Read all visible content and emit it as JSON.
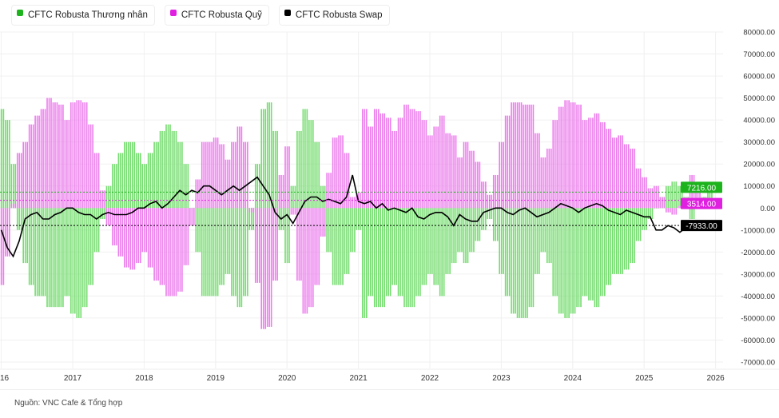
{
  "legend": [
    {
      "label": "CFTC Robusta Thương nhân",
      "color": "#1db31d"
    },
    {
      "label": "CFTC Robusta Quỹ",
      "color": "#e020e0"
    },
    {
      "label": "CFTC Robusta Swap",
      "color": "#000000"
    }
  ],
  "source": "Nguồn: VNC Cafe & Tổng hợp",
  "chart_data": {
    "type": "bar",
    "x_start": "2016-01",
    "x_step": "month",
    "x_ticks": [
      "16",
      "2017",
      "2018",
      "2019",
      "2020",
      "2021",
      "2022",
      "2023",
      "2024",
      "2025",
      "2026"
    ],
    "ylim": [
      -70000,
      80000
    ],
    "y_ticks": [
      80000,
      70000,
      60000,
      50000,
      40000,
      30000,
      20000,
      10000,
      0,
      -10000,
      -20000,
      -30000,
      -40000,
      -50000,
      -60000,
      -70000
    ],
    "y_tick_labels": [
      "80000.00",
      "70000.00",
      "60000.00",
      "50000.00",
      "40000.00",
      "30000.00",
      "20000.00",
      "10000.00",
      "0.00",
      "-10000.00",
      "-20000.00",
      "-30000.00",
      "-40000.00",
      "-50000.00",
      "-60000.00",
      "-70000.00"
    ],
    "grid": true,
    "axis_position": "right",
    "legend_position": "top-left",
    "series": [
      {
        "name": "CFTC Robusta Thương nhân",
        "kind": "bar",
        "color": "#74dc6e",
        "label_color": "#1db31d",
        "last_label": "7216.00",
        "values": [
          45000,
          40000,
          20000,
          -10000,
          -25000,
          -35000,
          -40000,
          -40000,
          -45000,
          -45000,
          -45000,
          -40000,
          -48000,
          -50000,
          -45000,
          -35000,
          -20000,
          -5000,
          10000,
          20000,
          25000,
          30000,
          30000,
          25000,
          20000,
          25000,
          30000,
          35000,
          38000,
          35000,
          30000,
          20000,
          0,
          -20000,
          -40000,
          -40000,
          -40000,
          -35000,
          -30000,
          -40000,
          -45000,
          -40000,
          -10000,
          20000,
          45000,
          48000,
          35000,
          -10000,
          -25000,
          10000,
          35000,
          45000,
          40000,
          30000,
          10000,
          -20000,
          -35000,
          -35000,
          -30000,
          -20000,
          -10000,
          -50000,
          -40000,
          -45000,
          -45000,
          -40000,
          -35000,
          -40000,
          -45000,
          -45000,
          -40000,
          -35000,
          -30000,
          -35000,
          -40000,
          -30000,
          -25000,
          -20000,
          -25000,
          -20000,
          -15000,
          -10000,
          -5000,
          -15000,
          -30000,
          -40000,
          -48000,
          -50000,
          -50000,
          -45000,
          -30000,
          -20000,
          -25000,
          -40000,
          -48000,
          -50000,
          -48000,
          -45000,
          -40000,
          -42000,
          -45000,
          -40000,
          -35000,
          -30000,
          -30000,
          -28000,
          -25000,
          -15000,
          -10000,
          -5000,
          0,
          5000,
          10000,
          12000,
          10000,
          5000,
          -5000,
          0,
          5000,
          7216
        ]
      },
      {
        "name": "CFTC Robusta Quỹ",
        "kind": "bar",
        "color": "#eb7ceb",
        "label_color": "#e020e0",
        "last_label": "3514.00",
        "values": [
          -35000,
          -22000,
          2000,
          25000,
          30000,
          38000,
          42000,
          45000,
          50000,
          48000,
          47000,
          40000,
          48000,
          49000,
          48000,
          38000,
          25000,
          8000,
          -8000,
          -17000,
          -22000,
          -27000,
          -28000,
          -25000,
          -20000,
          -27000,
          -33000,
          -35000,
          -40000,
          -40000,
          -38000,
          -26000,
          -8000,
          13000,
          30000,
          30000,
          32000,
          29000,
          22000,
          30000,
          37000,
          30000,
          -2000,
          -34000,
          -55000,
          -54000,
          -33000,
          15000,
          28000,
          -3000,
          -33000,
          -48000,
          -45000,
          -35000,
          -13000,
          16000,
          32000,
          33000,
          25000,
          5000,
          7000,
          45000,
          37000,
          45000,
          43000,
          41000,
          35000,
          41000,
          47000,
          45000,
          44000,
          40000,
          33000,
          37000,
          42000,
          34000,
          33000,
          23000,
          30000,
          26000,
          21000,
          12000,
          6000,
          15000,
          30000,
          42000,
          48000,
          48000,
          47000,
          47000,
          34000,
          23000,
          27000,
          40000,
          46000,
          49000,
          48000,
          47000,
          40000,
          41000,
          43000,
          39000,
          36000,
          32000,
          33000,
          29000,
          27000,
          18000,
          14000,
          9000,
          10000,
          5000,
          -2000,
          -3000,
          1000,
          4000,
          15000,
          9000,
          3000,
          3514
        ]
      },
      {
        "name": "CFTC Robusta Swap",
        "kind": "line",
        "color": "#000000",
        "label_color": "#000000",
        "last_label": "-7933.00",
        "values": [
          -10000,
          -18000,
          -22000,
          -15000,
          -5000,
          -3000,
          -2000,
          -5000,
          -5000,
          -3000,
          -2000,
          0,
          0,
          -2000,
          -3000,
          -3000,
          -5000,
          -3000,
          -2000,
          -3000,
          -3000,
          -3000,
          -2000,
          0,
          0,
          2000,
          3000,
          0,
          2000,
          5000,
          8000,
          6000,
          8000,
          7000,
          10000,
          10000,
          8000,
          6000,
          8000,
          10000,
          8000,
          10000,
          12000,
          14000,
          10000,
          6000,
          -2000,
          -5000,
          -3000,
          -7000,
          -2000,
          3000,
          5000,
          5000,
          3000,
          4000,
          3000,
          2000,
          5000,
          15000,
          3000,
          2000,
          3000,
          0,
          2000,
          -1000,
          0,
          -1000,
          -2000,
          0,
          -4000,
          -5000,
          -3000,
          -2000,
          -2000,
          -4000,
          -8000,
          -3000,
          -5000,
          -6000,
          -6000,
          -2000,
          -1000,
          0,
          0,
          -2000,
          -3000,
          -1000,
          0,
          -2000,
          -4000,
          -3000,
          -2000,
          0,
          2000,
          1000,
          0,
          -2000,
          0,
          1000,
          2000,
          1000,
          -1000,
          -2000,
          -3000,
          -1000,
          -2000,
          -3000,
          -4000,
          -4000,
          -10000,
          -10000,
          -8000,
          -9000,
          -11000,
          -9000,
          -10000,
          -9000,
          -8000,
          -7933
        ]
      }
    ]
  }
}
